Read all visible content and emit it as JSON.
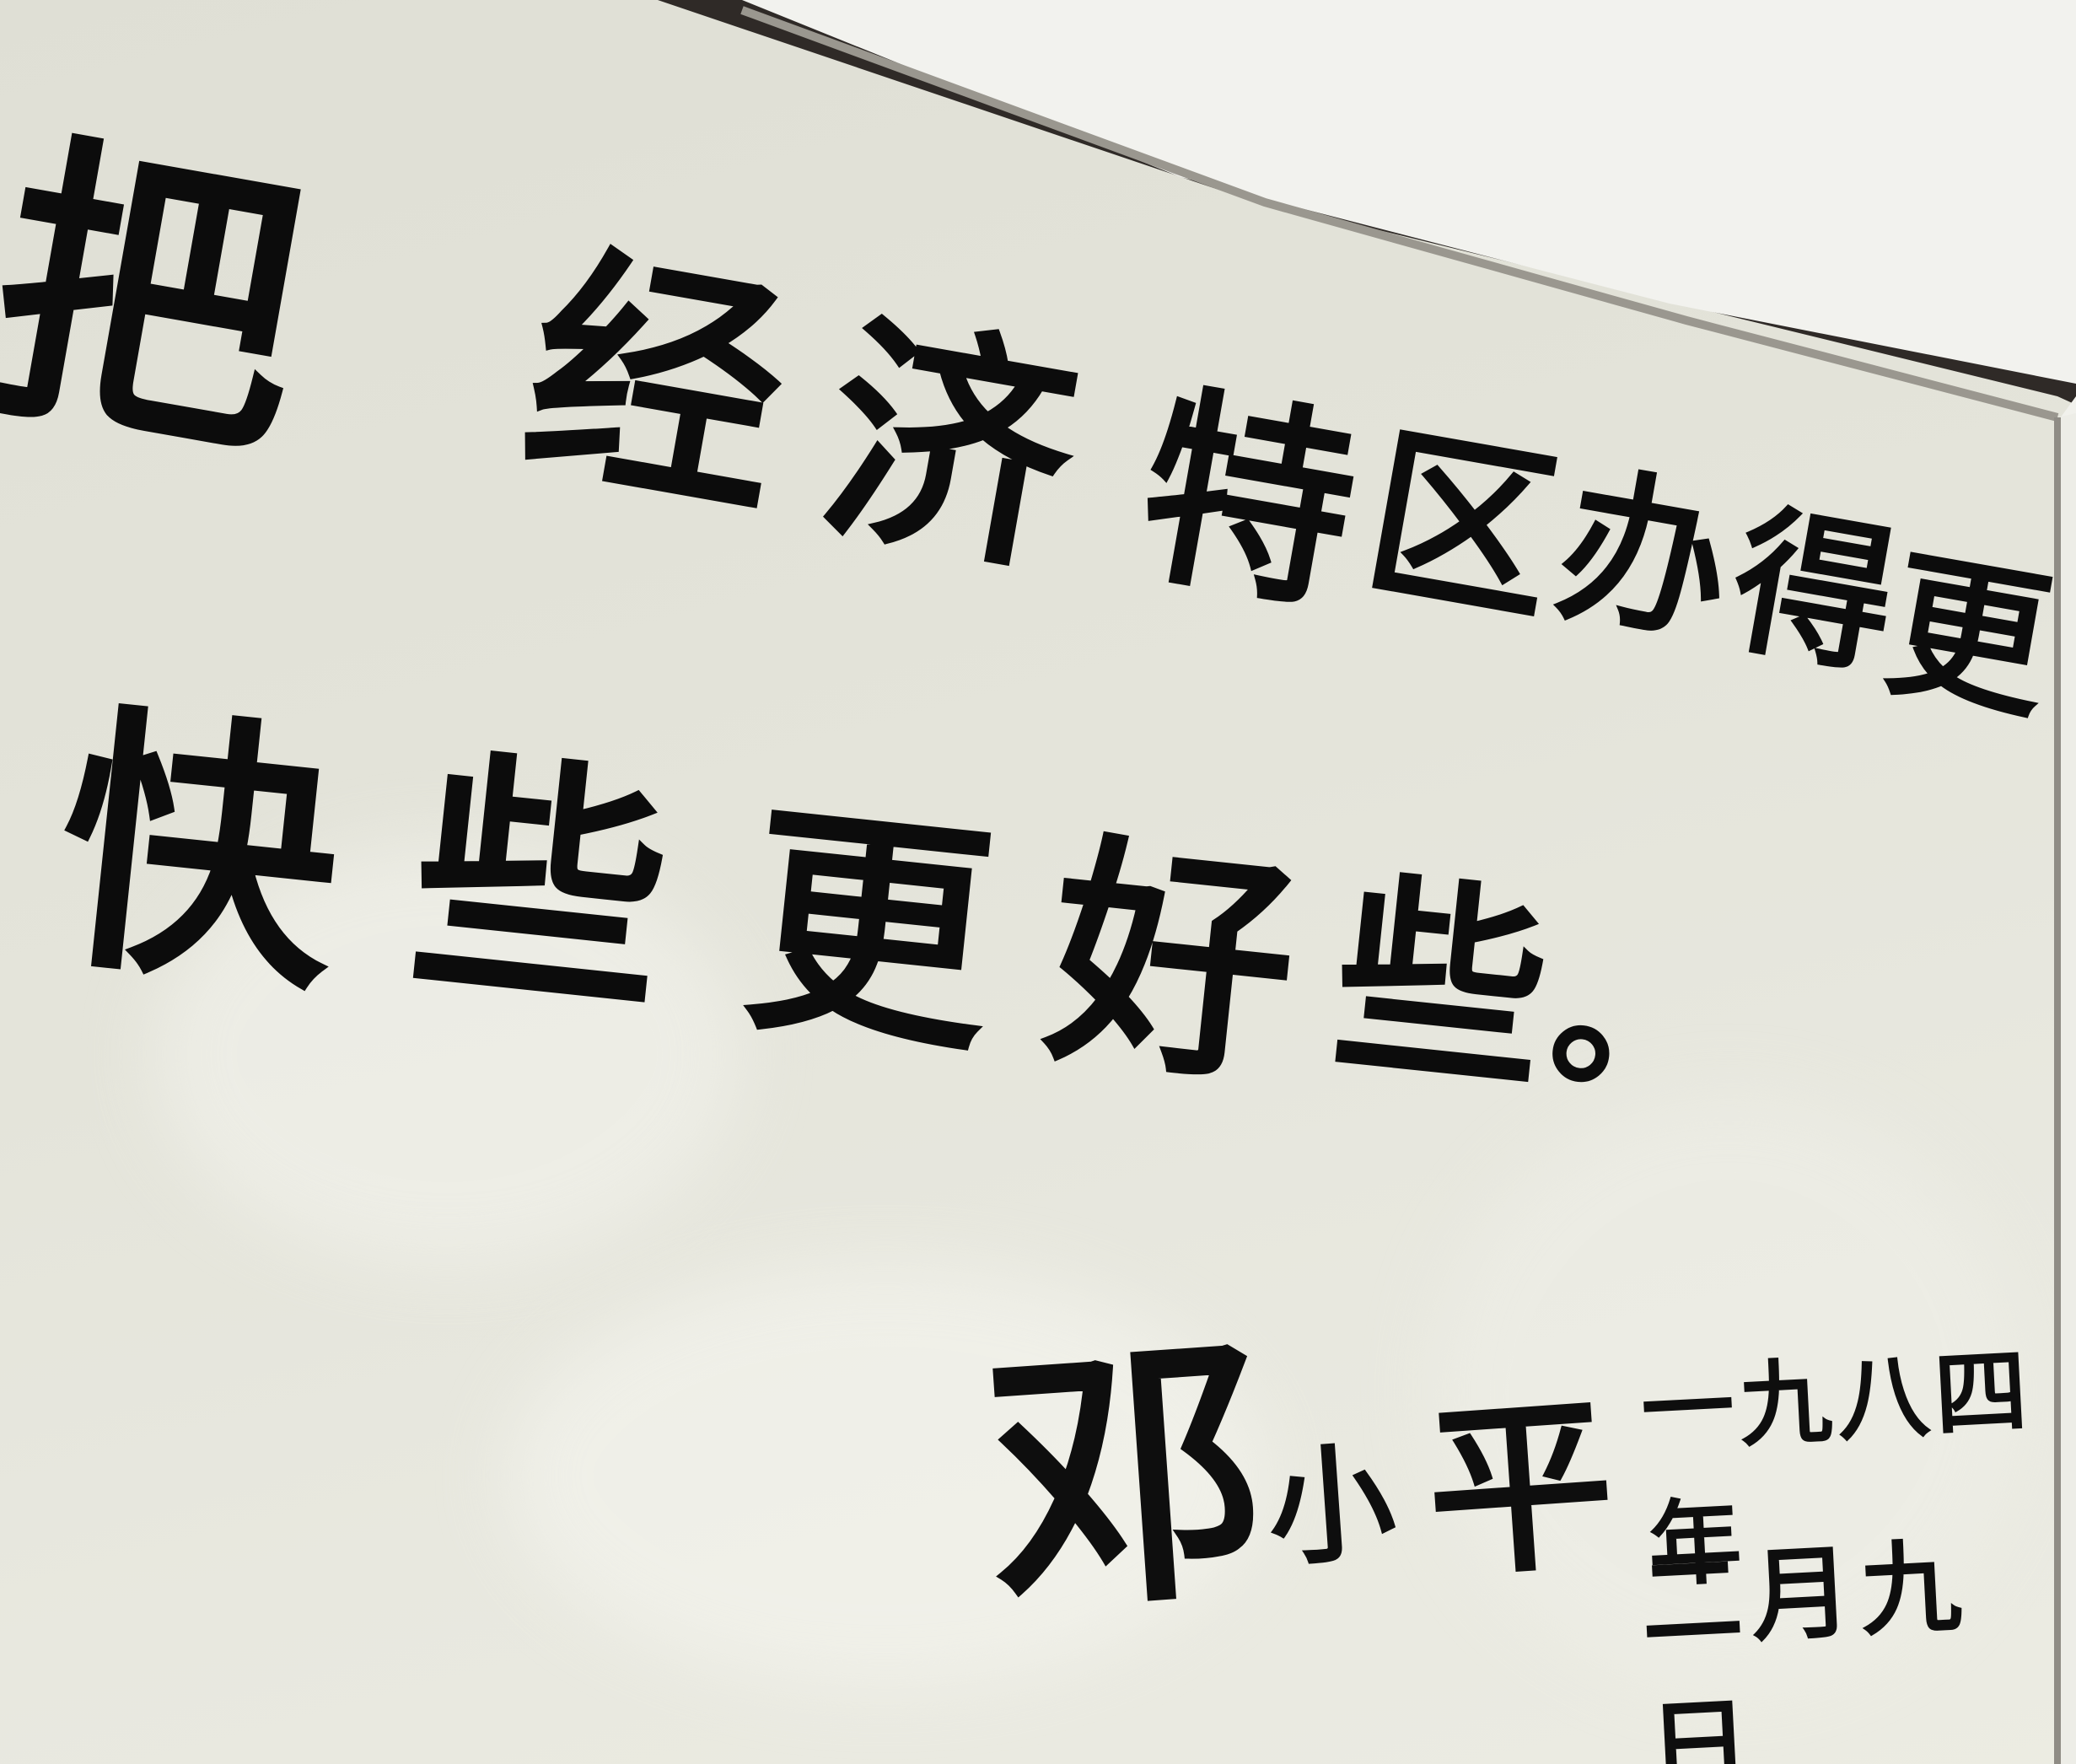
{
  "calligraphy": {
    "line1": [
      "把",
      "经",
      "济",
      "特",
      "区",
      "办",
      "得",
      "更"
    ],
    "line2": [
      "快",
      "些",
      "更",
      "好",
      "些",
      "。"
    ],
    "signature": [
      "邓",
      "小",
      "平"
    ],
    "date_line1": "一九八四年",
    "date_line2": "二月九日"
  },
  "colors": {
    "paper": "#e4e4da",
    "ink": "#0c0c0c",
    "frame": "#f2f2ee",
    "frame_edge": "#3a3430"
  }
}
